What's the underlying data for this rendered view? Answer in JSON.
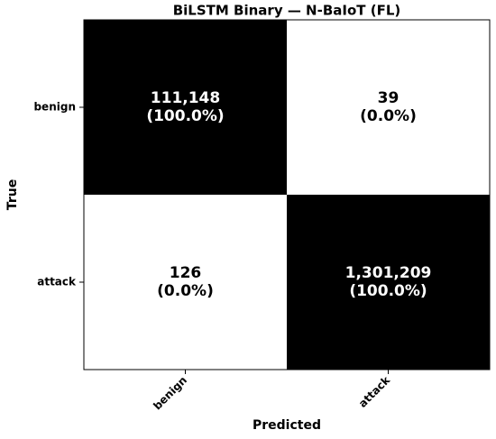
{
  "chart_data": {
    "type": "heatmap",
    "title": "BiLSTM Binary — N-BaIoT (FL)",
    "x_label": "Predicted",
    "y_label": "True",
    "x_categories": [
      "benign",
      "attack"
    ],
    "y_categories": [
      "benign",
      "attack"
    ],
    "values": [
      [
        111148,
        39
      ],
      [
        126,
        1301209
      ]
    ],
    "value_labels": [
      [
        "111,148",
        "39"
      ],
      [
        "126",
        "1,301,209"
      ]
    ],
    "row_percents": [
      [
        100.0,
        0.0
      ],
      [
        0.0,
        100.0
      ]
    ],
    "row_percent_labels": [
      [
        "(100.0%)",
        "(0.0%)"
      ],
      [
        "(0.0%)",
        "(100.0%)"
      ]
    ],
    "colormap": [
      "#ffffff",
      "#000000"
    ]
  }
}
